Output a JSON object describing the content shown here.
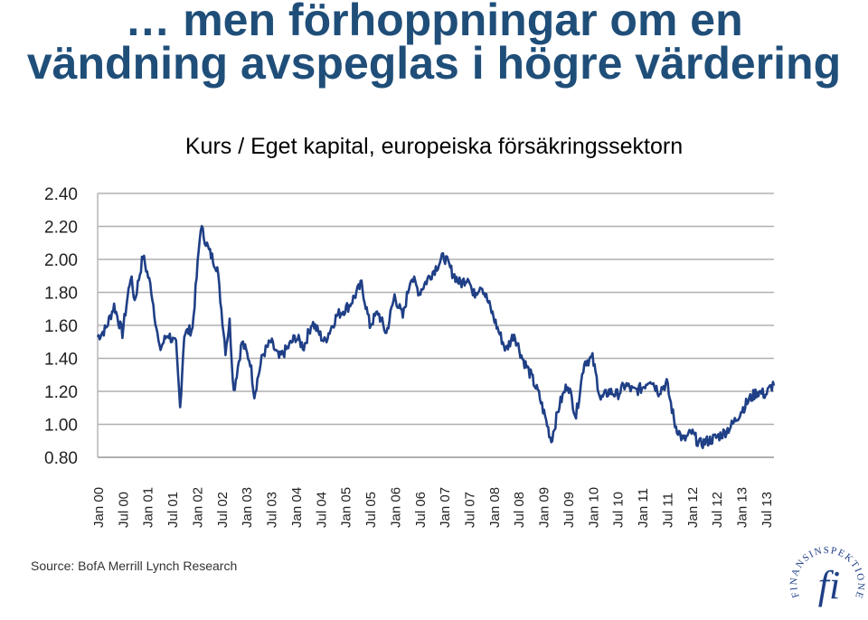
{
  "slide": {
    "title_line1": "… men förhoppningar om en",
    "title_line2": "vändning avspeglas i högre värdering",
    "subtitle": "Kurs / Eget kapital, europeiska försäkringssektorn",
    "source": "Source: BofA Merrill Lynch Research",
    "logo_text": "FINANSINSPEKTIONEN",
    "logo_mark": "fi",
    "colors": {
      "title": "#1f4e79",
      "series": "#1f3f86",
      "grid": "#b0b0b0"
    }
  },
  "chart_data": {
    "type": "line",
    "title": "Kurs / Eget kapital, europeiska försäkringssektorn",
    "ylim": [
      0.8,
      2.4
    ],
    "yticks": [
      "2.40",
      "2.20",
      "2.00",
      "1.80",
      "1.60",
      "1.40",
      "1.20",
      "1.00",
      "0.80"
    ],
    "xlim": [
      "2000-01",
      "2013-09"
    ],
    "xticks": [
      "Jan 00",
      "Jul 00",
      "Jan 01",
      "Jul 01",
      "Jan 02",
      "Jul 02",
      "Jan 03",
      "Jul 03",
      "Jan 04",
      "Jul 04",
      "Jan 05",
      "Jul 05",
      "Jan 06",
      "Jul 06",
      "Jan 07",
      "Jul 07",
      "Jan 08",
      "Jul 08",
      "Jan 09",
      "Jul 09",
      "Jan 10",
      "Jul 10",
      "Jan 11",
      "Jul 11",
      "Jan 12",
      "Jul 12",
      "Jan 13",
      "Jul 13"
    ],
    "grid": true,
    "series": [
      {
        "x": [
          "2000-01",
          "2000-03",
          "2000-05",
          "2000-07",
          "2000-09",
          "2000-10",
          "2000-12",
          "2001-02",
          "2001-04",
          "2001-06",
          "2001-08",
          "2001-09",
          "2001-10",
          "2001-12",
          "2002-02",
          "2002-04",
          "2002-06",
          "2002-08",
          "2002-09",
          "2002-10",
          "2002-12",
          "2003-02",
          "2003-03",
          "2003-05",
          "2003-07",
          "2003-09",
          "2003-11",
          "2004-01",
          "2004-03",
          "2004-05",
          "2004-08",
          "2004-11",
          "2005-02",
          "2005-05",
          "2005-07",
          "2005-09",
          "2005-11",
          "2006-01",
          "2006-03",
          "2006-05",
          "2006-07",
          "2006-09",
          "2006-11",
          "2007-01",
          "2007-03",
          "2007-05",
          "2007-07",
          "2007-08",
          "2007-10",
          "2007-12",
          "2008-02",
          "2008-04",
          "2008-06",
          "2008-08",
          "2008-10",
          "2008-12",
          "2009-02",
          "2009-03",
          "2009-05",
          "2009-07",
          "2009-09",
          "2009-11",
          "2010-01",
          "2010-03",
          "2010-05",
          "2010-07",
          "2010-09",
          "2010-11",
          "2011-01",
          "2011-03",
          "2011-05",
          "2011-07",
          "2011-09",
          "2011-11",
          "2012-01",
          "2012-03",
          "2012-05",
          "2012-07",
          "2012-09",
          "2012-11",
          "2013-01",
          "2013-03",
          "2013-05",
          "2013-07",
          "2013-09"
        ],
        "y": [
          1.53,
          1.58,
          1.72,
          1.55,
          1.9,
          1.75,
          2.02,
          1.82,
          1.45,
          1.55,
          1.48,
          1.1,
          1.55,
          1.58,
          2.2,
          2.05,
          1.95,
          1.45,
          1.62,
          1.2,
          1.5,
          1.38,
          1.18,
          1.42,
          1.5,
          1.4,
          1.46,
          1.53,
          1.47,
          1.62,
          1.5,
          1.66,
          1.72,
          1.85,
          1.6,
          1.68,
          1.55,
          1.78,
          1.65,
          1.9,
          1.8,
          1.88,
          1.95,
          2.02,
          1.92,
          1.85,
          1.9,
          1.78,
          1.85,
          1.72,
          1.58,
          1.45,
          1.55,
          1.4,
          1.3,
          1.18,
          1.0,
          0.9,
          1.12,
          1.25,
          1.05,
          1.38,
          1.4,
          1.15,
          1.2,
          1.18,
          1.24,
          1.2,
          1.22,
          1.28,
          1.2,
          1.25,
          1.0,
          0.9,
          0.95,
          0.88,
          0.9,
          0.92,
          0.95,
          1.0,
          1.08,
          1.15,
          1.2,
          1.18,
          1.25
        ]
      }
    ]
  }
}
